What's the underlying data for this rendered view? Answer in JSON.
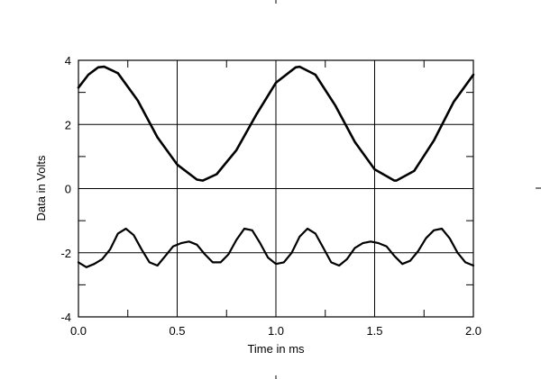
{
  "chart_data": {
    "type": "line",
    "title": "",
    "xlabel": "Time in ms",
    "ylabel": "Data in Volts",
    "xlim": [
      0.0,
      2.0
    ],
    "ylim": [
      -4,
      4
    ],
    "x_ticks": [
      "0.0",
      "0.5",
      "1.0",
      "1.5",
      "2.0"
    ],
    "y_ticks": [
      "4",
      "2",
      "0",
      "-2",
      "-4"
    ],
    "grid": true,
    "legend": "none",
    "series": [
      {
        "x": [
          0.0,
          0.05,
          0.1,
          0.13,
          0.2,
          0.3,
          0.4,
          0.5,
          0.6,
          0.63,
          0.7,
          0.8,
          0.9,
          1.0,
          1.1,
          1.12,
          1.2,
          1.3,
          1.4,
          1.5,
          1.6,
          1.61,
          1.7,
          1.8,
          1.9,
          2.0
        ],
        "y": [
          3.15,
          3.55,
          3.78,
          3.8,
          3.6,
          2.75,
          1.6,
          0.75,
          0.28,
          0.25,
          0.45,
          1.2,
          2.3,
          3.3,
          3.78,
          3.8,
          3.55,
          2.6,
          1.45,
          0.6,
          0.25,
          0.25,
          0.55,
          1.5,
          2.7,
          3.55
        ],
        "color": "#000000"
      },
      {
        "x": [
          0.0,
          0.04,
          0.08,
          0.12,
          0.16,
          0.2,
          0.24,
          0.28,
          0.32,
          0.36,
          0.4,
          0.44,
          0.48,
          0.52,
          0.56,
          0.6,
          0.64,
          0.68,
          0.72,
          0.76,
          0.8,
          0.84,
          0.88,
          0.92,
          0.96,
          1.0,
          1.04,
          1.08,
          1.12,
          1.16,
          1.2,
          1.24,
          1.28,
          1.32,
          1.36,
          1.4,
          1.44,
          1.48,
          1.52,
          1.56,
          1.6,
          1.64,
          1.68,
          1.72,
          1.76,
          1.8,
          1.84,
          1.88,
          1.92,
          1.96,
          2.0
        ],
        "y": [
          -2.3,
          -2.45,
          -2.35,
          -2.2,
          -1.9,
          -1.4,
          -1.25,
          -1.45,
          -1.9,
          -2.3,
          -2.4,
          -2.1,
          -1.8,
          -1.7,
          -1.65,
          -1.75,
          -2.05,
          -2.3,
          -2.3,
          -2.05,
          -1.6,
          -1.25,
          -1.3,
          -1.7,
          -2.15,
          -2.35,
          -2.3,
          -2.0,
          -1.5,
          -1.25,
          -1.4,
          -1.85,
          -2.3,
          -2.4,
          -2.2,
          -1.85,
          -1.7,
          -1.65,
          -1.7,
          -1.8,
          -2.1,
          -2.35,
          -2.25,
          -1.95,
          -1.55,
          -1.3,
          -1.25,
          -1.55,
          -2.0,
          -2.3,
          -2.4
        ],
        "color": "#000000"
      }
    ]
  }
}
